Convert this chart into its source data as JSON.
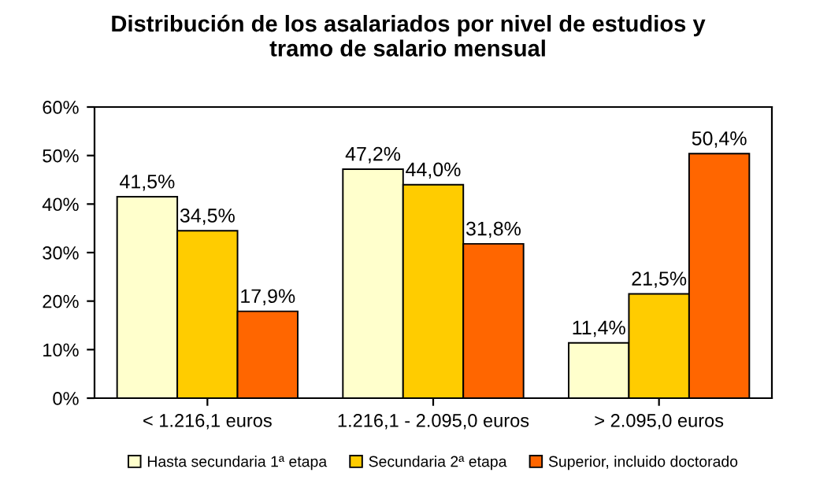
{
  "chart_data": {
    "type": "bar",
    "title": "Distribución de los asalariados por nivel de estudios y\ntramo de salario mensual",
    "categories": [
      "< 1.216,1 euros",
      "1.216,1 - 2.095,0 euros",
      "> 2.095,0 euros"
    ],
    "series": [
      {
        "name": "Hasta secundaria 1ª etapa",
        "color": "#ffffcc",
        "values": [
          41.5,
          47.2,
          11.4
        ],
        "value_labels": [
          "41,5%",
          "47,2%",
          "11,4%"
        ]
      },
      {
        "name": "Secundaria 2ª etapa",
        "color": "#ffcc00",
        "values": [
          34.5,
          44.0,
          21.5
        ],
        "value_labels": [
          "34,5%",
          "44,0%",
          "21,5%"
        ]
      },
      {
        "name": "Superior, incluido doctorado",
        "color": "#ff6600",
        "values": [
          17.9,
          31.8,
          50.4
        ],
        "value_labels": [
          "17,9%",
          "31,8%",
          "50,4%"
        ]
      }
    ],
    "ylim": [
      0,
      60
    ],
    "yticks": [
      {
        "value": 0,
        "label": "0%"
      },
      {
        "value": 10,
        "label": "10%"
      },
      {
        "value": 20,
        "label": "20%"
      },
      {
        "value": 30,
        "label": "30%"
      },
      {
        "value": 40,
        "label": "40%"
      },
      {
        "value": 50,
        "label": "50%"
      },
      {
        "value": 60,
        "label": "60%"
      }
    ],
    "legend": "bottom",
    "grid": false
  }
}
